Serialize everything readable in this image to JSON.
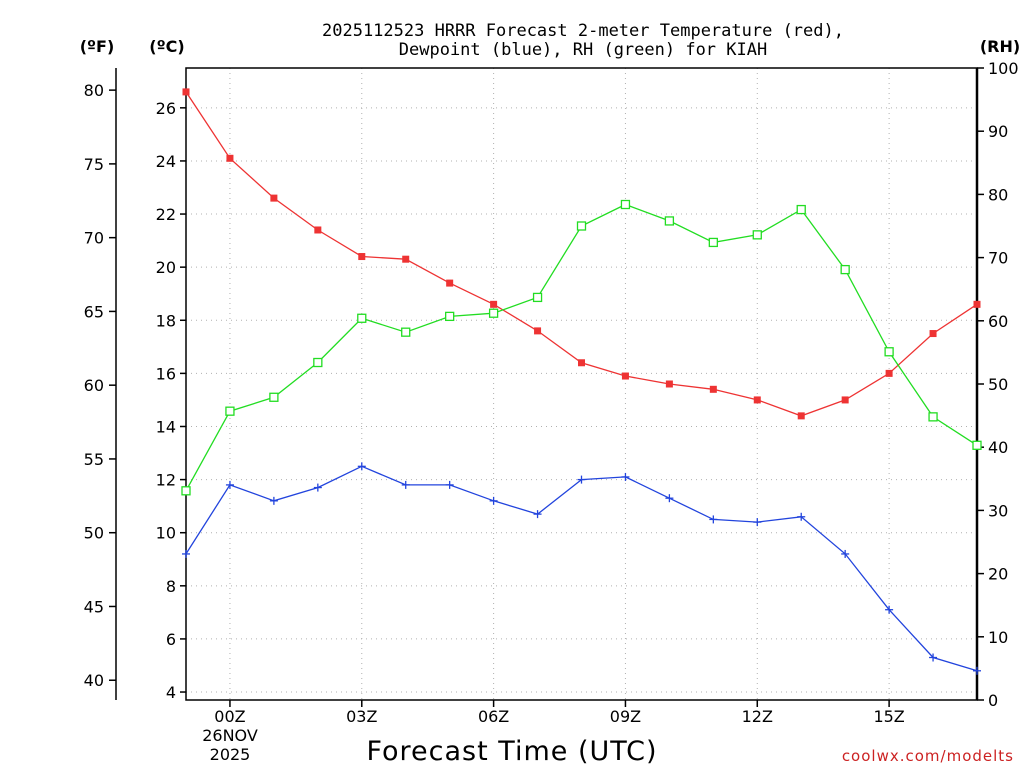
{
  "chart_data": {
    "type": "line",
    "title_line1": "2025112523 HRRR Forecast 2-meter Temperature (red),",
    "title_line2": "Dewpoint (blue), RH (green) for KIAH",
    "xlabel": "Forecast Time (UTC)",
    "watermark": "coolwx.com/modelts",
    "date_label_line1": "26NOV",
    "date_label_line2": "2025",
    "axis_unit_labels": {
      "fahrenheit": "(ºF)",
      "celsius": "(ºC)",
      "rh": "(RH)"
    },
    "x": [
      0,
      1,
      2,
      3,
      4,
      5,
      6,
      7,
      8,
      9,
      10,
      11,
      12,
      13,
      14,
      15,
      16,
      17,
      18
    ],
    "xlim": [
      0,
      18
    ],
    "x_ticks": [
      {
        "x": 1,
        "label": "00Z"
      },
      {
        "x": 4,
        "label": "03Z"
      },
      {
        "x": 7,
        "label": "06Z"
      },
      {
        "x": 10,
        "label": "09Z"
      },
      {
        "x": 13,
        "label": "12Z"
      },
      {
        "x": 16,
        "label": "15Z"
      }
    ],
    "ylim_celsius": [
      3.7,
      27.5
    ],
    "y_ticks_celsius": [
      4,
      6,
      8,
      10,
      12,
      14,
      16,
      18,
      20,
      22,
      24,
      26
    ],
    "y_ticks_fahrenheit": [
      40,
      45,
      50,
      55,
      60,
      65,
      70,
      75,
      80
    ],
    "ylim_rh": [
      0,
      100
    ],
    "y_ticks_rh": [
      0,
      10,
      20,
      30,
      40,
      50,
      60,
      70,
      80,
      90,
      100
    ],
    "grid": true,
    "series": [
      {
        "name": "Temperature",
        "color": "#ee3333",
        "marker": "filled-square",
        "axis": "celsius",
        "values": [
          26.6,
          24.1,
          22.6,
          21.4,
          20.4,
          20.3,
          19.4,
          18.6,
          17.6,
          16.4,
          15.9,
          15.6,
          15.4,
          15.0,
          14.4,
          15.0,
          16.0,
          17.5,
          18.6
        ]
      },
      {
        "name": "Dewpoint",
        "color": "#2244dd",
        "marker": "plus",
        "axis": "celsius",
        "values": [
          9.2,
          11.8,
          11.2,
          11.7,
          12.5,
          11.8,
          11.8,
          11.2,
          10.7,
          12.0,
          12.1,
          11.3,
          10.5,
          10.4,
          10.6,
          9.2,
          7.1,
          5.3,
          4.8
        ]
      },
      {
        "name": "RH",
        "color": "#22dd22",
        "marker": "open-square",
        "axis": "rh",
        "values": [
          33.1,
          45.7,
          47.9,
          53.4,
          60.4,
          58.2,
          60.7,
          61.2,
          63.7,
          75.0,
          78.4,
          75.8,
          72.4,
          73.6,
          77.6,
          68.1,
          55.1,
          44.8,
          40.3
        ]
      }
    ]
  }
}
